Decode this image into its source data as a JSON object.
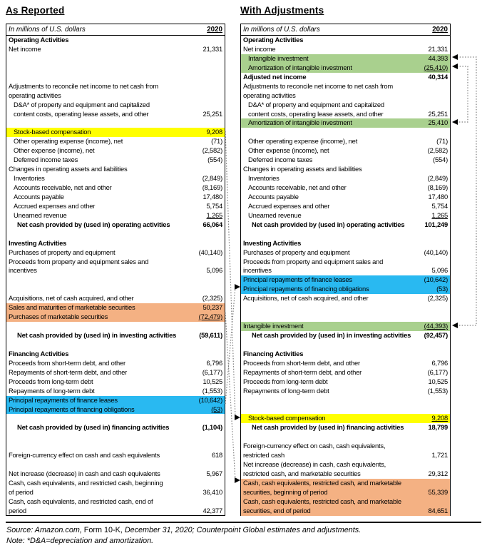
{
  "page": {
    "left_title": "As Reported",
    "right_title": "With Adjustments"
  },
  "colors": {
    "yellow": "#FFFF00",
    "green": "#A9D08E",
    "blue": "#29B9F1",
    "orange": "#F4B183"
  },
  "tables": {
    "left": {
      "unit_label": "In millions of U.S. dollars",
      "year": "2020",
      "rows": [
        {
          "label": "Operating Activities",
          "b": 1
        },
        {
          "label": "Net income",
          "value": "21,331"
        },
        {
          "blank": 1
        },
        {
          "blank": 1
        },
        {
          "blank": 1
        },
        {
          "label": "Adjustments to reconcile net income to net cash from"
        },
        {
          "label": "operating activities"
        },
        {
          "label": "D&A* of property and equipment and capitalized",
          "ind": 1
        },
        {
          "label": "content costs, operating lease assets, and other",
          "value": "25,251",
          "ind": 1
        },
        {
          "blank": 1
        },
        {
          "label": "Stock-based compensation",
          "value": "9,208",
          "ind": 1,
          "hl": "yellow"
        },
        {
          "label": "Other operating expense (income), net",
          "value": "(71)",
          "ind": 1
        },
        {
          "label": "Other expense (income), net",
          "value": "(2,582)",
          "ind": 1
        },
        {
          "label": "Deferred income taxes",
          "value": "(554)",
          "ind": 1
        },
        {
          "label": "Changes in operating assets and liabilities"
        },
        {
          "label": "Inventories",
          "value": "(2,849)",
          "ind": 1
        },
        {
          "label": "Accounts receivable, net and other",
          "value": "(8,169)",
          "ind": 1
        },
        {
          "label": "Accounts payable",
          "value": "17,480",
          "ind": 1
        },
        {
          "label": "Accrued expenses and other",
          "value": "5,754",
          "ind": 1
        },
        {
          "label": "Unearned revenue",
          "value": "1,265",
          "ind": 1,
          "u": 1
        },
        {
          "label": "Net cash provided by (used in) operating activities",
          "value": "66,064",
          "b": 1,
          "ind": 2
        },
        {
          "blank": 1
        },
        {
          "label": "Investing Activities",
          "b": 1
        },
        {
          "label": "Purchases of property and equipment",
          "value": "(40,140)"
        },
        {
          "label": "Proceeds from property and equipment sales and"
        },
        {
          "label": "incentives",
          "value": "5,096"
        },
        {
          "blank": 1
        },
        {
          "blank": 1
        },
        {
          "label": "Acquisitions, net of cash acquired, and other",
          "value": "(2,325)"
        },
        {
          "label": "Sales and maturities of marketable securities",
          "value": "50,237",
          "hl": "orange"
        },
        {
          "label": "Purchases of marketable securities",
          "value": "(72,479)",
          "hl": "orange",
          "u": 1
        },
        {
          "blank": 1
        },
        {
          "label": "Net cash provided by (used in) in investing activities",
          "value": "(59,611)",
          "b": 1,
          "ind": 2
        },
        {
          "blank": 1
        },
        {
          "label": "Financing Activities",
          "b": 1
        },
        {
          "label": "Proceeds from short-term debt, and other",
          "value": "6,796"
        },
        {
          "label": "Repayments of short-term debt, and other",
          "value": "(6,177)"
        },
        {
          "label": "Proceeds from long-term debt",
          "value": "10,525"
        },
        {
          "label": "Repayments of long-term debt",
          "value": "(1,553)"
        },
        {
          "label": "Principal repayments of finance leases",
          "value": "(10,642)",
          "hl": "blue"
        },
        {
          "label": "Principal repayments of financing obligations",
          "value": "(53)",
          "hl": "blue",
          "u": 1
        },
        {
          "blank": 1
        },
        {
          "label": "Net cash provided by (used in) financing activities",
          "value": "(1,104)",
          "b": 1,
          "ind": 2
        },
        {
          "blank": 1
        },
        {
          "blank": 1
        },
        {
          "label": "Foreign-currency effect on cash and cash equivalents",
          "value": "618"
        },
        {
          "blank": 1
        },
        {
          "label": "Net increase (decrease) in cash and cash equivalents",
          "value": "5,967"
        },
        {
          "label": "Cash, cash equivalents, and restricted cash, beginning"
        },
        {
          "label": "of period",
          "value": "36,410"
        },
        {
          "label": "Cash, cash equivalents, and restricted cash, end of"
        },
        {
          "label": "period",
          "value": "42,377"
        }
      ]
    },
    "right": {
      "unit_label": "In millions of U.S. dollars",
      "year": "2020",
      "rows": [
        {
          "label": "Operating Activities",
          "b": 1
        },
        {
          "label": "Net income",
          "value": "21,331"
        },
        {
          "label": "Intangible investment",
          "value": "44,393",
          "ind": 1,
          "hl": "green"
        },
        {
          "label": "Amortization of intangible investment",
          "value": "(25,410)",
          "ind": 1,
          "hl": "green",
          "u": 1
        },
        {
          "label": "Adjusted net income",
          "value": "40,314",
          "b": 1
        },
        {
          "label": "Adjustments to reconcile net income to net cash from"
        },
        {
          "label": "operating activities"
        },
        {
          "label": "D&A* of property and equipment and capitalized",
          "ind": 1
        },
        {
          "label": "content costs, operating lease assets, and other",
          "value": "25,251",
          "ind": 1
        },
        {
          "label": "Amortization of intangible investment",
          "value": "25,410",
          "ind": 1,
          "hl": "green"
        },
        {
          "blank": 1
        },
        {
          "label": "Other operating expense (income), net",
          "value": "(71)",
          "ind": 1
        },
        {
          "label": "Other expense (income), net",
          "value": "(2,582)",
          "ind": 1
        },
        {
          "label": "Deferred income taxes",
          "value": "(554)",
          "ind": 1
        },
        {
          "label": "Changes in operating assets and liabilities"
        },
        {
          "label": "Inventories",
          "value": "(2,849)",
          "ind": 1
        },
        {
          "label": "Accounts receivable, net and other",
          "value": "(8,169)",
          "ind": 1
        },
        {
          "label": "Accounts payable",
          "value": "17,480",
          "ind": 1
        },
        {
          "label": "Accrued expenses and other",
          "value": "5,754",
          "ind": 1
        },
        {
          "label": "Unearned revenue",
          "value": "1,265",
          "ind": 1,
          "u": 1
        },
        {
          "label": "Net cash provided by (used in) operating activities",
          "value": "101,249",
          "b": 1,
          "ind": 2
        },
        {
          "blank": 1
        },
        {
          "label": "Investing Activities",
          "b": 1
        },
        {
          "label": "Purchases of property and equipment",
          "value": "(40,140)"
        },
        {
          "label": "Proceeds from property and equipment sales and"
        },
        {
          "label": "incentives",
          "value": "5,096"
        },
        {
          "label": "Principal repayments of finance leases",
          "value": "(10,642)",
          "hl": "blue"
        },
        {
          "label": "Principal repayments of financing obligations",
          "value": "(53)",
          "hl": "blue"
        },
        {
          "label": "Acquisitions, net of cash acquired, and other",
          "value": "(2,325)"
        },
        {
          "blank": 1
        },
        {
          "blank": 1
        },
        {
          "label": "Intangible investment",
          "value": "(44,393)",
          "hl": "green",
          "u": 1
        },
        {
          "label": "Net cash provided by (used in) in investing activities",
          "value": "(92,457)",
          "b": 1,
          "ind": 2
        },
        {
          "blank": 1
        },
        {
          "label": "Financing Activities",
          "b": 1
        },
        {
          "label": "Proceeds from short-term debt, and other",
          "value": "6,796"
        },
        {
          "label": "Repayments of short-term debt, and other",
          "value": "(6,177)"
        },
        {
          "label": "Proceeds from long-term debt",
          "value": "10,525"
        },
        {
          "label": "Repayments of long-term debt",
          "value": "(1,553)"
        },
        {
          "blank": 1
        },
        {
          "blank": 1
        },
        {
          "label": "Stock-based compensation",
          "value": "9,208",
          "ind": 1,
          "hl": "yellow",
          "u": 1
        },
        {
          "label": "Net cash provided by (used in) financing activities",
          "value": "18,799",
          "b": 1,
          "ind": 2
        },
        {
          "blank": 1
        },
        {
          "label": "Foreign-currency effect on cash, cash equivalents,"
        },
        {
          "label": "restricted cash",
          "value": "1,721"
        },
        {
          "label": "Net increase (decrease) in cash, cash equivalents,"
        },
        {
          "label": "restricted cash, and marketable securities",
          "value": "29,312"
        },
        {
          "label": "Cash, cash equivalents, restricted cash, and marketable",
          "hl": "orange"
        },
        {
          "label": "securities, beginning of period",
          "value": "55,339",
          "hl": "orange"
        },
        {
          "label": "Cash, cash equivalents, restricted cash, and marketable",
          "hl": "orange"
        },
        {
          "label": "securities, end of period",
          "value": "84,651",
          "hl": "orange"
        }
      ]
    }
  },
  "footer": {
    "source_italic1": "Source: Amazon.com,",
    "source_upright": " Form 10-K, ",
    "source_italic2": "December 31, 2020; Counterpoint Global estimates and adjustments.",
    "note": "Note: *D&A=depreciation and amortization."
  }
}
